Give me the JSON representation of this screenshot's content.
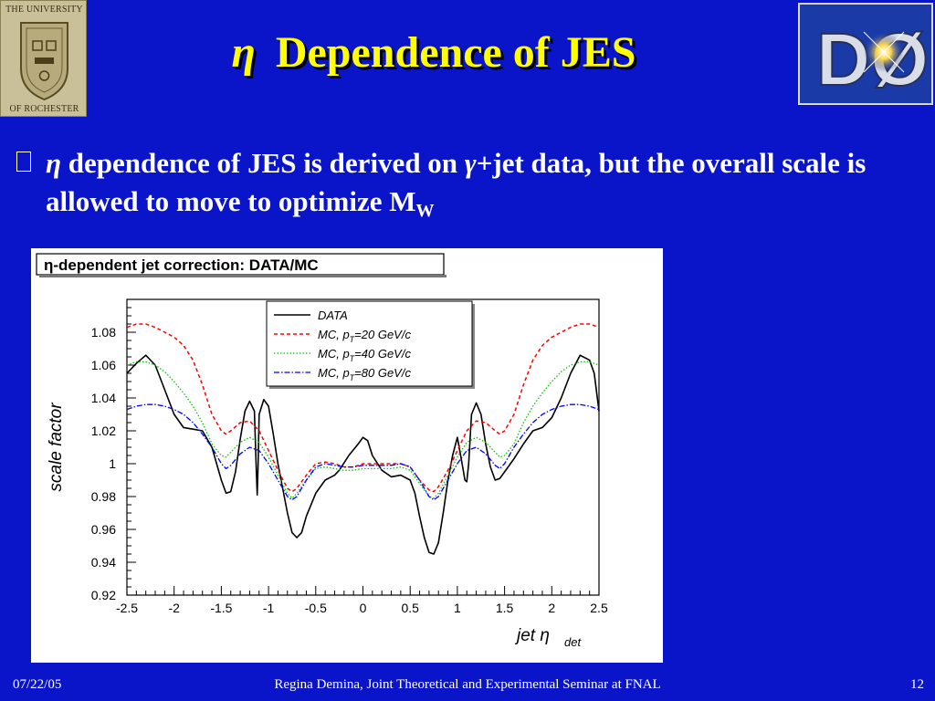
{
  "slide": {
    "title_eta": "η",
    "title_text": "Dependence of JES",
    "bullet": {
      "eta": "η",
      "text1": " dependence of JES is derived on ",
      "gamma": "γ",
      "text2": "+jet data, but the overall scale is allowed to move to optimize M",
      "subscript": "W"
    },
    "footer_date": "07/22/05",
    "footer_center": "Regina Demina, Joint Theoretical and Experimental Seminar at FNAL",
    "footer_page": "12"
  },
  "logos": {
    "left_lines": [
      "THE UNIVERSITY",
      "OF ROCHESTER"
    ],
    "right_text": "DØ"
  },
  "colors": {
    "background": "#0a14c8",
    "title": "#ffff00",
    "text": "#ffffff"
  },
  "chart_data": {
    "type": "line",
    "title": "η-dependent jet correction: DATA/MC",
    "xlabel": "jet  η",
    "xlabel_sub": "det",
    "ylabel": "scale factor",
    "xlim": [
      -2.5,
      2.5
    ],
    "ylim": [
      0.92,
      1.1
    ],
    "xticks": [
      -2.5,
      -2,
      -1.5,
      -1,
      -0.5,
      0,
      0.5,
      1,
      1.5,
      2,
      2.5
    ],
    "xtick_labels": [
      "-2.5",
      "-2",
      "-1.5",
      "-1",
      "-0.5",
      "0",
      "0.5",
      "1",
      "1.5",
      "2",
      "2.5"
    ],
    "yticks": [
      0.92,
      0.94,
      0.96,
      0.98,
      1.0,
      1.02,
      1.04,
      1.06,
      1.08
    ],
    "ytick_labels": [
      "0.92",
      "0.94",
      "0.96",
      "0.98",
      "1",
      "1.02",
      "1.04",
      "1.06",
      "1.08"
    ],
    "legend_position": "top-center",
    "series": [
      {
        "name": "DATA",
        "legend_parts": [
          "DATA"
        ],
        "color": "#000000",
        "dash": "",
        "width": 1.6,
        "points": [
          [
            -2.5,
            1.055
          ],
          [
            -2.4,
            1.061
          ],
          [
            -2.3,
            1.066
          ],
          [
            -2.2,
            1.06
          ],
          [
            -2.1,
            1.045
          ],
          [
            -2.0,
            1.03
          ],
          [
            -1.9,
            1.022
          ],
          [
            -1.8,
            1.021
          ],
          [
            -1.7,
            1.02
          ],
          [
            -1.6,
            1.01
          ],
          [
            -1.5,
            0.99
          ],
          [
            -1.45,
            0.982
          ],
          [
            -1.4,
            0.983
          ],
          [
            -1.35,
            0.995
          ],
          [
            -1.3,
            1.015
          ],
          [
            -1.25,
            1.032
          ],
          [
            -1.2,
            1.038
          ],
          [
            -1.15,
            1.032
          ],
          [
            -1.13,
            0.996
          ],
          [
            -1.12,
            0.981
          ],
          [
            -1.11,
            1.0
          ],
          [
            -1.1,
            1.03
          ],
          [
            -1.05,
            1.039
          ],
          [
            -1.0,
            1.035
          ],
          [
            -0.95,
            1.018
          ],
          [
            -0.9,
            1.0
          ],
          [
            -0.85,
            0.985
          ],
          [
            -0.8,
            0.97
          ],
          [
            -0.75,
            0.958
          ],
          [
            -0.7,
            0.955
          ],
          [
            -0.65,
            0.958
          ],
          [
            -0.6,
            0.968
          ],
          [
            -0.5,
            0.982
          ],
          [
            -0.4,
            0.99
          ],
          [
            -0.3,
            0.993
          ],
          [
            -0.25,
            0.996
          ],
          [
            -0.15,
            1.005
          ],
          [
            -0.05,
            1.012
          ],
          [
            0.0,
            1.016
          ],
          [
            0.05,
            1.014
          ],
          [
            0.1,
            1.005
          ],
          [
            0.2,
            0.996
          ],
          [
            0.3,
            0.992
          ],
          [
            0.4,
            0.993
          ],
          [
            0.5,
            0.99
          ],
          [
            0.55,
            0.982
          ],
          [
            0.6,
            0.968
          ],
          [
            0.65,
            0.955
          ],
          [
            0.7,
            0.946
          ],
          [
            0.75,
            0.945
          ],
          [
            0.8,
            0.952
          ],
          [
            0.85,
            0.97
          ],
          [
            0.9,
            0.99
          ],
          [
            0.95,
            1.005
          ],
          [
            1.0,
            1.016
          ],
          [
            1.05,
            1.0
          ],
          [
            1.08,
            0.99
          ],
          [
            1.1,
            0.989
          ],
          [
            1.12,
            1.0
          ],
          [
            1.15,
            1.03
          ],
          [
            1.2,
            1.037
          ],
          [
            1.25,
            1.03
          ],
          [
            1.3,
            1.012
          ],
          [
            1.35,
            0.998
          ],
          [
            1.4,
            0.99
          ],
          [
            1.45,
            0.991
          ],
          [
            1.5,
            0.995
          ],
          [
            1.6,
            1.003
          ],
          [
            1.7,
            1.012
          ],
          [
            1.8,
            1.02
          ],
          [
            1.9,
            1.022
          ],
          [
            2.0,
            1.028
          ],
          [
            2.1,
            1.04
          ],
          [
            2.2,
            1.055
          ],
          [
            2.3,
            1.066
          ],
          [
            2.4,
            1.063
          ],
          [
            2.45,
            1.055
          ],
          [
            2.5,
            1.032
          ]
        ]
      },
      {
        "name": "MC, pT=20 GeV/c",
        "legend_parts": [
          "MC, p",
          "T",
          "=20 GeV/c"
        ],
        "color": "#ff0000",
        "dash": "4,3",
        "width": 1.5,
        "points": [
          [
            -2.5,
            1.083
          ],
          [
            -2.4,
            1.085
          ],
          [
            -2.3,
            1.085
          ],
          [
            -2.2,
            1.083
          ],
          [
            -2.1,
            1.08
          ],
          [
            -2.0,
            1.077
          ],
          [
            -1.9,
            1.072
          ],
          [
            -1.8,
            1.063
          ],
          [
            -1.7,
            1.048
          ],
          [
            -1.6,
            1.03
          ],
          [
            -1.5,
            1.02
          ],
          [
            -1.45,
            1.018
          ],
          [
            -1.4,
            1.02
          ],
          [
            -1.3,
            1.025
          ],
          [
            -1.2,
            1.026
          ],
          [
            -1.1,
            1.02
          ],
          [
            -1.0,
            1.008
          ],
          [
            -0.9,
            0.996
          ],
          [
            -0.8,
            0.985
          ],
          [
            -0.75,
            0.983
          ],
          [
            -0.7,
            0.985
          ],
          [
            -0.6,
            0.993
          ],
          [
            -0.5,
            1.0
          ],
          [
            -0.4,
            1.001
          ],
          [
            -0.3,
            1.0
          ],
          [
            -0.2,
            0.998
          ],
          [
            -0.1,
            0.998
          ],
          [
            0.0,
            1.0
          ],
          [
            0.1,
            1.0
          ],
          [
            0.2,
            1.0
          ],
          [
            0.3,
            1.0
          ],
          [
            0.4,
            1.0
          ],
          [
            0.5,
            0.998
          ],
          [
            0.6,
            0.99
          ],
          [
            0.7,
            0.984
          ],
          [
            0.75,
            0.983
          ],
          [
            0.8,
            0.986
          ],
          [
            0.9,
            0.996
          ],
          [
            1.0,
            1.008
          ],
          [
            1.1,
            1.02
          ],
          [
            1.2,
            1.026
          ],
          [
            1.3,
            1.025
          ],
          [
            1.4,
            1.02
          ],
          [
            1.45,
            1.018
          ],
          [
            1.5,
            1.02
          ],
          [
            1.6,
            1.03
          ],
          [
            1.7,
            1.048
          ],
          [
            1.8,
            1.063
          ],
          [
            1.9,
            1.072
          ],
          [
            2.0,
            1.077
          ],
          [
            2.1,
            1.08
          ],
          [
            2.2,
            1.083
          ],
          [
            2.3,
            1.085
          ],
          [
            2.4,
            1.085
          ],
          [
            2.5,
            1.083
          ]
        ]
      },
      {
        "name": "MC, pT=40 GeV/c",
        "legend_parts": [
          "MC, p",
          "T",
          "=40 GeV/c"
        ],
        "color": "#00c800",
        "dash": "1.5,2",
        "width": 1.3,
        "points": [
          [
            -2.5,
            1.06
          ],
          [
            -2.4,
            1.062
          ],
          [
            -2.3,
            1.062
          ],
          [
            -2.2,
            1.06
          ],
          [
            -2.1,
            1.056
          ],
          [
            -2.0,
            1.05
          ],
          [
            -1.9,
            1.043
          ],
          [
            -1.8,
            1.035
          ],
          [
            -1.7,
            1.025
          ],
          [
            -1.6,
            1.012
          ],
          [
            -1.5,
            1.005
          ],
          [
            -1.45,
            1.004
          ],
          [
            -1.4,
            1.007
          ],
          [
            -1.3,
            1.013
          ],
          [
            -1.2,
            1.016
          ],
          [
            -1.1,
            1.013
          ],
          [
            -1.0,
            1.004
          ],
          [
            -0.9,
            0.993
          ],
          [
            -0.8,
            0.982
          ],
          [
            -0.75,
            0.979
          ],
          [
            -0.7,
            0.982
          ],
          [
            -0.6,
            0.99
          ],
          [
            -0.5,
            0.997
          ],
          [
            -0.4,
            0.998
          ],
          [
            -0.3,
            0.997
          ],
          [
            -0.2,
            0.996
          ],
          [
            -0.1,
            0.996
          ],
          [
            0.0,
            0.997
          ],
          [
            0.1,
            0.997
          ],
          [
            0.2,
            0.997
          ],
          [
            0.3,
            0.997
          ],
          [
            0.4,
            0.998
          ],
          [
            0.5,
            0.996
          ],
          [
            0.6,
            0.988
          ],
          [
            0.7,
            0.98
          ],
          [
            0.75,
            0.979
          ],
          [
            0.8,
            0.982
          ],
          [
            0.9,
            0.993
          ],
          [
            1.0,
            1.004
          ],
          [
            1.1,
            1.013
          ],
          [
            1.2,
            1.016
          ],
          [
            1.3,
            1.013
          ],
          [
            1.4,
            1.007
          ],
          [
            1.45,
            1.004
          ],
          [
            1.5,
            1.005
          ],
          [
            1.6,
            1.012
          ],
          [
            1.7,
            1.025
          ],
          [
            1.8,
            1.035
          ],
          [
            1.9,
            1.043
          ],
          [
            2.0,
            1.05
          ],
          [
            2.1,
            1.056
          ],
          [
            2.2,
            1.06
          ],
          [
            2.3,
            1.062
          ],
          [
            2.4,
            1.062
          ],
          [
            2.5,
            1.06
          ]
        ]
      },
      {
        "name": "MC, pT=80 GeV/c",
        "legend_parts": [
          "MC, p",
          "T",
          "=80 GeV/c"
        ],
        "color": "#0000ff",
        "dash": "6,2,1.5,2",
        "width": 1.3,
        "points": [
          [
            -2.5,
            1.033
          ],
          [
            -2.4,
            1.035
          ],
          [
            -2.3,
            1.036
          ],
          [
            -2.2,
            1.036
          ],
          [
            -2.1,
            1.035
          ],
          [
            -2.0,
            1.033
          ],
          [
            -1.9,
            1.03
          ],
          [
            -1.8,
            1.025
          ],
          [
            -1.7,
            1.018
          ],
          [
            -1.6,
            1.01
          ],
          [
            -1.5,
            1.0
          ],
          [
            -1.45,
            0.997
          ],
          [
            -1.4,
            0.999
          ],
          [
            -1.3,
            1.006
          ],
          [
            -1.2,
            1.01
          ],
          [
            -1.1,
            1.008
          ],
          [
            -1.0,
            1.0
          ],
          [
            -0.9,
            0.99
          ],
          [
            -0.8,
            0.98
          ],
          [
            -0.75,
            0.978
          ],
          [
            -0.7,
            0.98
          ],
          [
            -0.6,
            0.99
          ],
          [
            -0.5,
            0.998
          ],
          [
            -0.4,
            1.0
          ],
          [
            -0.3,
            0.999
          ],
          [
            -0.2,
            0.998
          ],
          [
            -0.1,
            0.998
          ],
          [
            0.0,
            0.999
          ],
          [
            0.1,
            0.999
          ],
          [
            0.2,
            0.999
          ],
          [
            0.3,
            0.999
          ],
          [
            0.4,
            1.0
          ],
          [
            0.5,
            0.998
          ],
          [
            0.6,
            0.99
          ],
          [
            0.7,
            0.98
          ],
          [
            0.75,
            0.978
          ],
          [
            0.8,
            0.98
          ],
          [
            0.9,
            0.99
          ],
          [
            1.0,
            1.0
          ],
          [
            1.1,
            1.008
          ],
          [
            1.2,
            1.01
          ],
          [
            1.3,
            1.006
          ],
          [
            1.4,
            0.999
          ],
          [
            1.45,
            0.997
          ],
          [
            1.5,
            1.0
          ],
          [
            1.6,
            1.01
          ],
          [
            1.7,
            1.018
          ],
          [
            1.8,
            1.025
          ],
          [
            1.9,
            1.03
          ],
          [
            2.0,
            1.033
          ],
          [
            2.1,
            1.035
          ],
          [
            2.2,
            1.036
          ],
          [
            2.3,
            1.036
          ],
          [
            2.4,
            1.035
          ],
          [
            2.5,
            1.033
          ]
        ]
      }
    ]
  }
}
